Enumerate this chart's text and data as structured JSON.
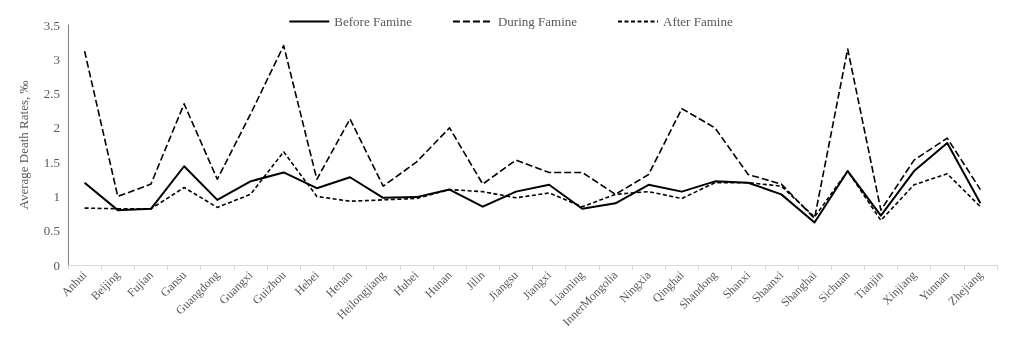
{
  "chart_data": {
    "type": "line",
    "ylabel": "Average Death Rates, ‰",
    "categories": [
      "Anhui",
      "Beijing",
      "Fujian",
      "Gansu",
      "Guangdong",
      "Guangxi",
      "Guizhou",
      "Hebei",
      "Henan",
      "Heilongjiang",
      "Hubei",
      "Hunan",
      "Jilin",
      "Jiangsu",
      "Jiangxi",
      "Liaoning",
      "InnerMongolia",
      "Ningxia",
      "Qinghai",
      "Shandong",
      "Shanxi",
      "Shaanxi",
      "Shanghai",
      "Sichuan",
      "Tianjin",
      "Xinjiang",
      "Yunnan",
      "Zhejiang"
    ],
    "series": [
      {
        "name": "Before Famine",
        "color": "#000000",
        "line_style": "solid",
        "values": [
          1.2,
          0.8,
          0.82,
          1.44,
          0.95,
          1.22,
          1.35,
          1.12,
          1.28,
          0.98,
          0.99,
          1.1,
          0.85,
          1.07,
          1.17,
          0.82,
          0.9,
          1.17,
          1.07,
          1.22,
          1.2,
          1.03,
          0.62,
          1.37,
          0.72,
          1.37,
          1.78,
          0.9
        ]
      },
      {
        "name": "During Famine",
        "color": "#000000",
        "line_style": "dashed",
        "values": [
          3.12,
          1.0,
          1.18,
          2.35,
          1.25,
          2.2,
          3.2,
          1.25,
          2.13,
          1.15,
          1.5,
          2.0,
          1.18,
          1.53,
          1.35,
          1.35,
          1.03,
          1.32,
          2.28,
          2.0,
          1.32,
          1.18,
          0.68,
          3.15,
          0.8,
          1.53,
          1.85,
          1.1
        ]
      },
      {
        "name": "After Famine",
        "color": "#000000",
        "line_style": "dotted",
        "values": [
          0.83,
          0.82,
          0.82,
          1.13,
          0.84,
          1.03,
          1.65,
          1.0,
          0.93,
          0.95,
          0.97,
          1.1,
          1.07,
          0.98,
          1.05,
          0.85,
          1.03,
          1.07,
          0.97,
          1.2,
          1.2,
          1.15,
          0.7,
          1.37,
          0.65,
          1.17,
          1.33,
          0.85
        ]
      }
    ],
    "ylim": [
      0,
      3.5
    ],
    "yticks": [
      0,
      0.5,
      1,
      1.5,
      2,
      2.5,
      3,
      3.5
    ],
    "grid": false,
    "legend": "top",
    "marker": "none"
  }
}
